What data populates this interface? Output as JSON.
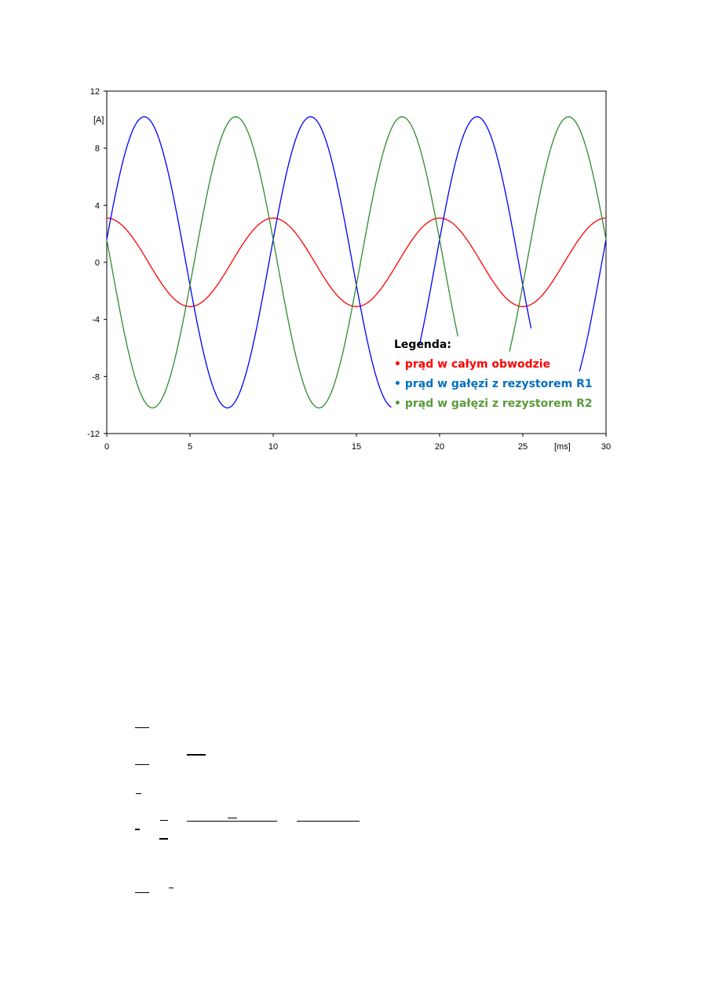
{
  "chart_data": {
    "type": "line",
    "title": "",
    "xlabel": "[ms]",
    "ylabel": "[A]",
    "xlim": [
      0,
      30
    ],
    "ylim": [
      -12,
      12
    ],
    "xticks": [
      0,
      5,
      10,
      15,
      20,
      25,
      30
    ],
    "yticks": [
      -12,
      -8,
      -4,
      0,
      4,
      8,
      12
    ],
    "grid": false,
    "legend": {
      "title": "Legenda:",
      "placement": "bottom-right",
      "bullet": "•"
    },
    "series": [
      {
        "name": "prąd w całym obwodzie",
        "color": "#ff0000",
        "amplitude": 3.1,
        "period_ms": 10,
        "phase_deg": 90,
        "segments": [
          [
            0,
            30
          ]
        ]
      },
      {
        "name": "prąd w gałęzi z rezystorem R1",
        "color": "#0000ff",
        "legend_color": "#0070c0",
        "amplitude": 10.2,
        "period_ms": 10,
        "phase_deg": 9,
        "segments": [
          [
            0,
            17.1
          ],
          [
            18.8,
            25.5
          ],
          [
            28.4,
            30
          ]
        ]
      },
      {
        "name": "prąd w gałęzi z rezystorem R2",
        "color": "#2e8b2e",
        "legend_color": "#5b9a3c",
        "amplitude": 10.2,
        "period_ms": 10,
        "phase_deg": 171,
        "segments": [
          [
            0,
            21.1
          ],
          [
            24.2,
            30
          ]
        ]
      }
    ]
  }
}
